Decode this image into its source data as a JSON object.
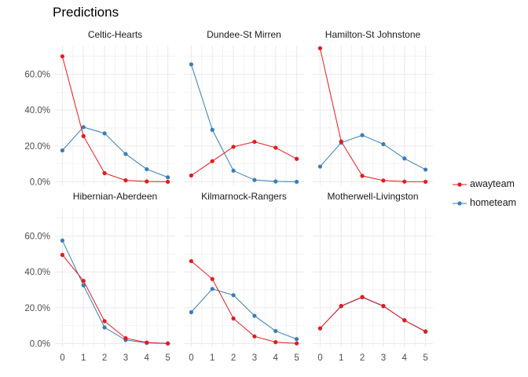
{
  "chart_data": {
    "type": "line",
    "title": "Predictions",
    "xlabel": "",
    "ylabel": "",
    "x": [
      0,
      1,
      2,
      3,
      4,
      5
    ],
    "x_tick_labels": [
      "0",
      "1",
      "2",
      "3",
      "4",
      "5"
    ],
    "ylim": [
      -0.02,
      0.76
    ],
    "y_ticks": [
      0,
      0.2,
      0.4,
      0.6
    ],
    "y_tick_labels": [
      "0.0%",
      "20.0%",
      "40.0%",
      "60.0%"
    ],
    "grid": true,
    "legend_position": "right",
    "colors": {
      "awayteam": "#e41a1c",
      "hometeam": "#377eb8",
      "grid": "#ebebeb"
    },
    "legend": [
      {
        "key": "awayteam",
        "label": "awayteam"
      },
      {
        "key": "hometeam",
        "label": "hometeam"
      }
    ],
    "panels": [
      {
        "label": "Celtic-Hearts",
        "series": [
          {
            "name": "awayteam",
            "values": [
              0.7,
              0.255,
              0.048,
              0.008,
              0.002,
              0.0
            ]
          },
          {
            "name": "hometeam",
            "values": [
              0.175,
              0.305,
              0.27,
              0.155,
              0.07,
              0.025
            ]
          }
        ]
      },
      {
        "label": "Dundee-St Mirren",
        "series": [
          {
            "name": "awayteam",
            "values": [
              0.035,
              0.115,
              0.195,
              0.223,
              0.19,
              0.128
            ]
          },
          {
            "name": "hometeam",
            "values": [
              0.655,
              0.29,
              0.062,
              0.01,
              0.002,
              0.0
            ]
          }
        ]
      },
      {
        "label": "Hamilton-St Johnstone",
        "series": [
          {
            "name": "awayteam",
            "values": [
              0.745,
              0.225,
              0.033,
              0.007,
              0.001,
              0.0
            ]
          },
          {
            "name": "hometeam",
            "values": [
              0.085,
              0.218,
              0.26,
              0.21,
              0.13,
              0.068
            ]
          }
        ]
      },
      {
        "label": "Hibernian-Aberdeen",
        "series": [
          {
            "name": "awayteam",
            "values": [
              0.495,
              0.35,
              0.125,
              0.03,
              0.006,
              0.001
            ]
          },
          {
            "name": "hometeam",
            "values": [
              0.575,
              0.325,
              0.09,
              0.02,
              0.004,
              0.0
            ]
          }
        ]
      },
      {
        "label": "Kilmarnock-Rangers",
        "series": [
          {
            "name": "awayteam",
            "values": [
              0.46,
              0.36,
              0.14,
              0.04,
              0.008,
              0.001
            ]
          },
          {
            "name": "hometeam",
            "values": [
              0.175,
              0.305,
              0.27,
              0.155,
              0.07,
              0.025
            ]
          }
        ]
      },
      {
        "label": "Motherwell-Livingston",
        "series": [
          {
            "name": "awayteam",
            "values": [
              0.085,
              0.21,
              0.26,
              0.21,
              0.13,
              0.068
            ]
          },
          {
            "name": "hometeam",
            "values": [
              0.085,
              0.208,
              0.258,
              0.208,
              0.13,
              0.066
            ]
          }
        ]
      }
    ]
  }
}
